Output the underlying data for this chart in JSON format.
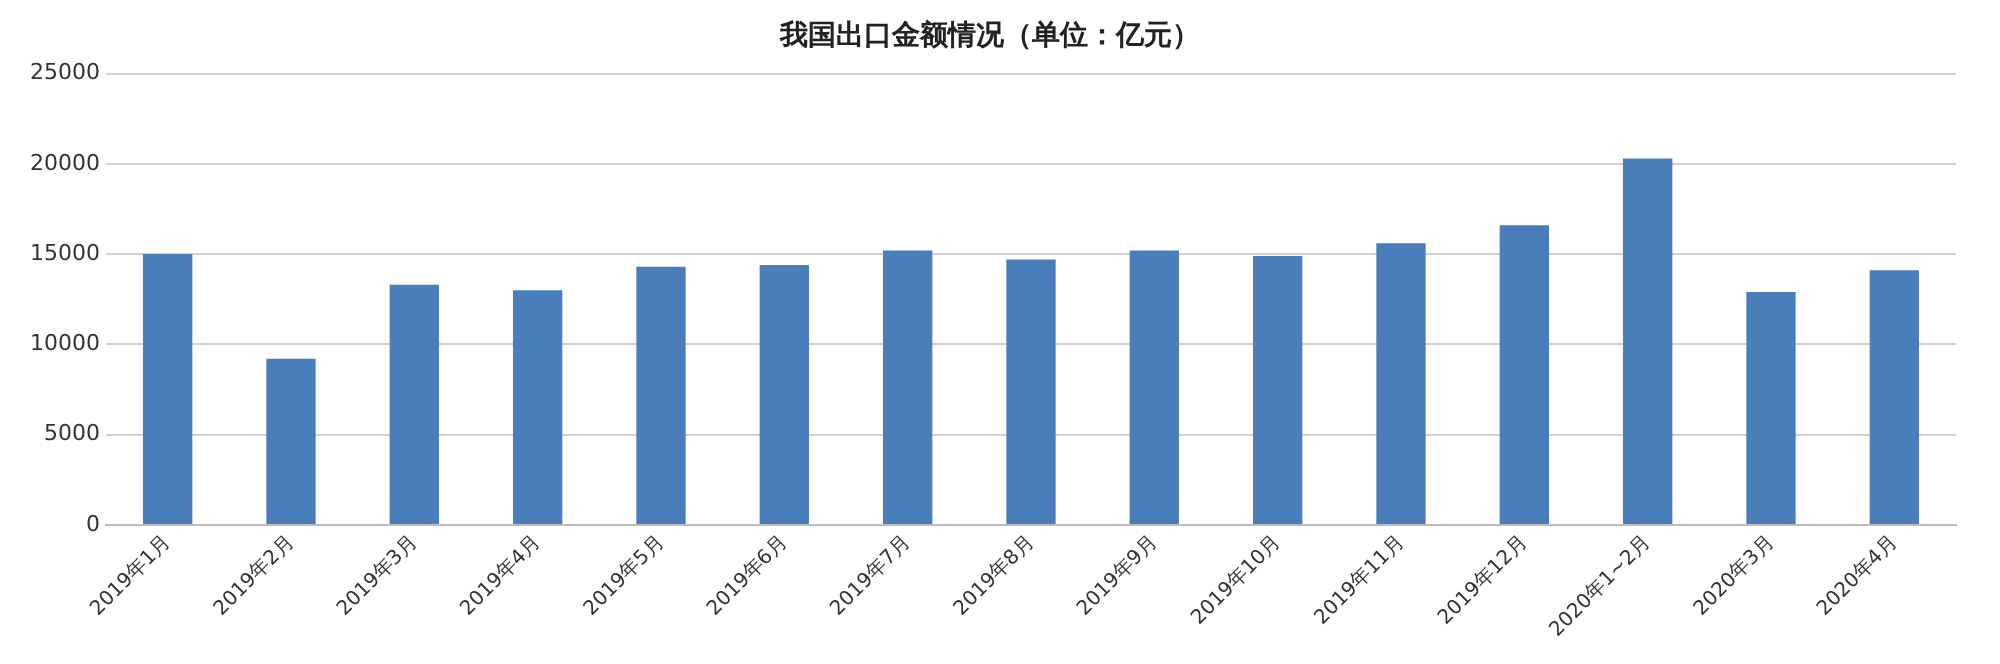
{
  "chart_data": {
    "type": "bar",
    "title": "我国出口金额情况（单位：亿元）",
    "categories": [
      "2019年1月",
      "2019年2月",
      "2019年3月",
      "2019年4月",
      "2019年5月",
      "2019年6月",
      "2019年7月",
      "2019年8月",
      "2019年9月",
      "2019年10月",
      "2019年11月",
      "2019年12月",
      "2020年1~2月",
      "2020年3月",
      "2020年4月"
    ],
    "values": [
      15000,
      9200,
      13300,
      13000,
      14300,
      14400,
      15200,
      14700,
      15200,
      14900,
      15600,
      16600,
      20300,
      12900,
      14100
    ],
    "color": "#4a7ebb",
    "ylim": [
      0,
      25000
    ],
    "yticks": [
      0,
      5000,
      10000,
      15000,
      20000,
      25000
    ],
    "grid": "y",
    "legend": false
  }
}
